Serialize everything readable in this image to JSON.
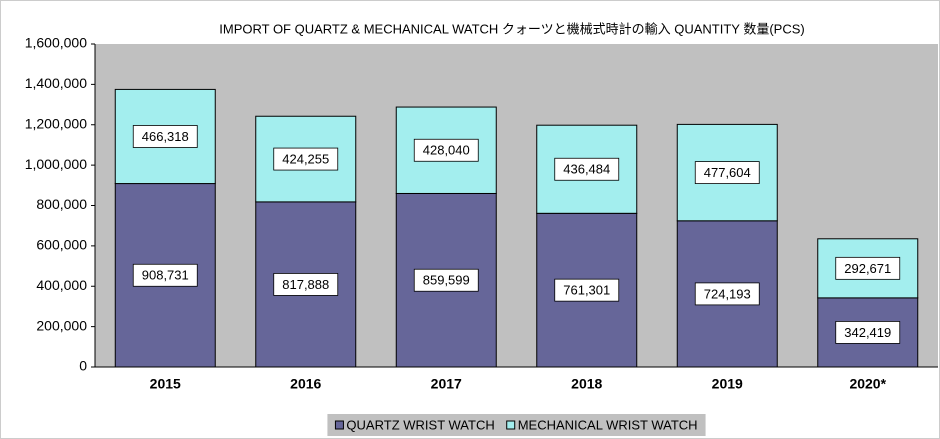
{
  "chart_data": {
    "type": "stacked_bar",
    "title": "IMPORT OF QUARTZ & MECHANICAL WATCH クォーツと機械式時計の輸入 QUANTITY 数量(PCS)",
    "categories": [
      "2015",
      "2016",
      "2017",
      "2018",
      "2019",
      "2020*"
    ],
    "series": [
      {
        "name": "QUARTZ WRIST WATCH",
        "color": "#666699",
        "values": [
          908731,
          817888,
          859599,
          761301,
          724193,
          342419
        ],
        "value_labels": [
          "908,731",
          "817,888",
          "859,599",
          "761,301",
          "724,193",
          "342,419"
        ]
      },
      {
        "name": "MECHANICAL WRIST WATCH",
        "color": "#a3eeee",
        "values": [
          466318,
          424255,
          428040,
          436484,
          477604,
          292671
        ],
        "value_labels": [
          "466,318",
          "424,255",
          "428,040",
          "436,484",
          "477,604",
          "292,671"
        ]
      }
    ],
    "ylim": [
      0,
      1600000
    ],
    "yticks": [
      0,
      {
        "value": 200000,
        "label": "200,000"
      },
      {
        "value": 400000,
        "label": "400,000"
      },
      {
        "value": 600000,
        "label": "600,000"
      },
      {
        "value": 800000,
        "label": "800,000"
      },
      {
        "value": 1000000,
        "label": "1,000,000"
      },
      {
        "value": 1200000,
        "label": "1,200,000"
      },
      {
        "value": 1400000,
        "label": "1,400,000"
      },
      {
        "value": 1600000,
        "label": "1,600,000"
      }
    ],
    "grid": false,
    "legend": "bottom"
  }
}
